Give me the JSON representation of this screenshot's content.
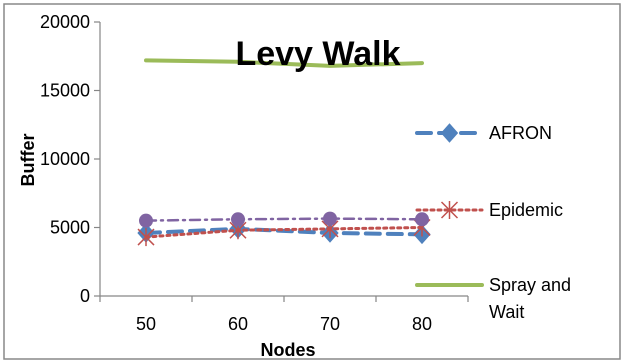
{
  "chart_data": {
    "type": "line",
    "title": "Levy Walk",
    "xlabel": "Nodes",
    "ylabel": "Buffer",
    "categories": [
      "50",
      "60",
      "70",
      "80"
    ],
    "ylim": [
      0,
      20000
    ],
    "yticks": [
      0,
      5000,
      10000,
      15000,
      20000
    ],
    "grid": false,
    "legend_position": "right",
    "series": [
      {
        "name": "AFRON",
        "values": [
          4600,
          4900,
          4600,
          4500
        ],
        "color": "#4F81BD",
        "style": "dashed",
        "marker": "diamond"
      },
      {
        "name": "Epidemic",
        "values": [
          4300,
          4800,
          4900,
          5000
        ],
        "color": "#C0504D",
        "style": "dotted",
        "marker": "star"
      },
      {
        "name": "Spray and Wait",
        "values": [
          17200,
          17100,
          16800,
          17000
        ],
        "color": "#9BBB59",
        "style": "solid",
        "marker": "none"
      },
      {
        "name": "",
        "values": [
          5500,
          5600,
          5650,
          5600
        ],
        "color": "#8064A2",
        "style": "dashdot",
        "marker": "circle"
      }
    ]
  }
}
